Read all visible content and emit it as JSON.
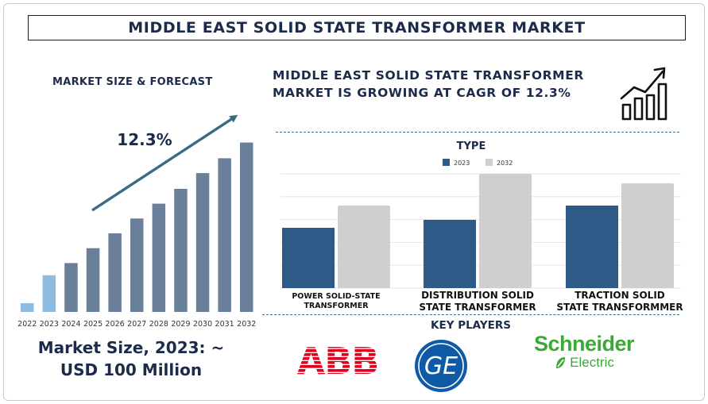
{
  "title": "MIDDLE EAST SOLID STATE TRANSFORMER MARKET",
  "left_heading": "MARKET SIZE & FORECAST",
  "headline": "MIDDLE EAST SOLID STATE TRANSFORMER MARKET IS GROWING AT CAGR OF 12.3%",
  "market_size_text": "Market Size, 2023: ~ USD 100 Million",
  "key_players_title": "KEY PLAYERS",
  "logos": {
    "abb": "ABB",
    "ge": "GE",
    "schneider_name": "Schneider",
    "schneider_sub": "Electric"
  },
  "icon_names": [
    "trend-chart-icon",
    "ge-monogram-icon",
    "schneider-leaf-icon"
  ],
  "chart_data": [
    {
      "type": "bar",
      "title": "",
      "annotation": "12.3%",
      "categories": [
        "2022",
        "2023",
        "2024",
        "2025",
        "2026",
        "2027",
        "2028",
        "2029",
        "2030",
        "2031",
        "2032"
      ],
      "values": [
        1.0,
        4.2,
        5.6,
        7.3,
        9.0,
        10.7,
        12.4,
        14.1,
        15.9,
        17.6,
        19.4
      ],
      "ylim": [
        0,
        20
      ],
      "grid": false,
      "colors": [
        "#8fbbe0",
        "#8fbbe0",
        "#6a7f99",
        "#6a7f99",
        "#6a7f99",
        "#6a7f99",
        "#6a7f99",
        "#6a7f99",
        "#6a7f99",
        "#6a7f99",
        "#6a7f99"
      ],
      "arrow_color": "#3c6a85"
    },
    {
      "type": "bar",
      "title": "TYPE",
      "categories": [
        "POWER SOLID-STATE TRANSFORMER",
        "DISTRIBUTION SOLID STATE TRANSFORMER",
        "TRACTION SOLID STATE TRANSFORMMER"
      ],
      "series": [
        {
          "name": "2023",
          "values": [
            38,
            43,
            52
          ],
          "color": "#2d5a87"
        },
        {
          "name": "2032",
          "values": [
            52,
            72,
            66
          ],
          "color": "#cfcfcf"
        }
      ],
      "ylim": [
        0,
        72
      ],
      "grid": true,
      "legend_position": "top-center"
    }
  ]
}
